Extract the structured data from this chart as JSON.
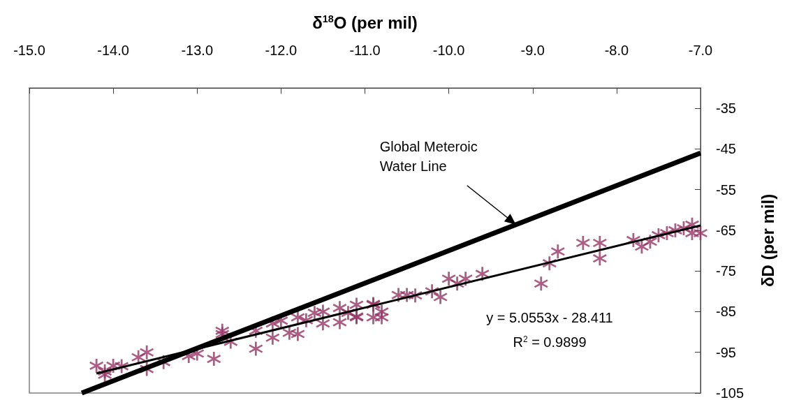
{
  "chart_data": {
    "type": "scatter",
    "xlabel": "δ$^{18}$O (per mil)",
    "ylabel": "δD (per mil)",
    "xlim": [
      -15,
      -7
    ],
    "ylim": [
      -105,
      -30
    ],
    "xticks": [
      {
        "value": -15,
        "label": "-15.0"
      },
      {
        "value": -14,
        "label": "-14.0"
      },
      {
        "value": -13,
        "label": "-13.0"
      },
      {
        "value": -12,
        "label": "-12.0"
      },
      {
        "value": -11,
        "label": "-11.0"
      },
      {
        "value": -10,
        "label": "-10.0"
      },
      {
        "value": -9,
        "label": "-9.0"
      },
      {
        "value": -8,
        "label": "-8.0"
      },
      {
        "value": -7,
        "label": "-7.0"
      }
    ],
    "yticks": [
      -105,
      -95,
      -85,
      -75,
      -65,
      -55,
      -45,
      -35
    ],
    "grid": false,
    "marker": "star",
    "line_style": "solid",
    "series": [
      {
        "type": "line",
        "marker": "none",
        "color": "#000000",
        "x": [
          -14.375,
          -7
        ],
        "values": [
          -105,
          -46
        ]
      },
      {
        "color": "#993366",
        "x": [
          -14.2,
          -14.1,
          -14.0,
          -13.9,
          -14.1,
          -13.7,
          -13.6,
          -13.6,
          -13.4,
          -13.1,
          -13.0,
          -12.8,
          -12.7,
          -12.7,
          -12.6,
          -12.3,
          -12.3,
          -12.1,
          -12.1,
          -12.0,
          -11.9,
          -11.8,
          -11.8,
          -11.7,
          -11.6,
          -11.5,
          -11.5,
          -11.3,
          -11.3,
          -11.2,
          -11.1,
          -11.1,
          -10.9,
          -10.9,
          -11.1,
          -10.9,
          -10.8,
          -10.8,
          -10.6,
          -10.5,
          -10.4,
          -10.2,
          -10.1,
          -10.0,
          -9.9,
          -9.8,
          -9.6,
          -8.9,
          -8.8,
          -8.7,
          -8.4,
          -8.2,
          -8.2,
          -7.8,
          -7.7,
          -7.6,
          -7.5,
          -7.4,
          -7.3,
          -7.2,
          -7.1,
          -7.1,
          -7.0
        ],
        "values": [
          -98.3,
          -100.5,
          -98.3,
          -98.4,
          -99.7,
          -96.2,
          -95,
          -99.1,
          -97.4,
          -95.9,
          -95.3,
          -96.6,
          -89.7,
          -90.5,
          -92.4,
          -94.1,
          -89.7,
          -91.4,
          -87.9,
          -87.2,
          -90.2,
          -86.4,
          -90.5,
          -87.1,
          -85.3,
          -87.9,
          -85,
          -84.1,
          -87.6,
          -85.3,
          -83.3,
          -86.4,
          -83.3,
          -86.4,
          -86.2,
          -83.1,
          -85,
          -86.4,
          -80.9,
          -80.9,
          -81,
          -80,
          -81.4,
          -76.9,
          -78.1,
          -76.9,
          -75.7,
          -78.1,
          -73.1,
          -70.2,
          -68.1,
          -68.1,
          -71.9,
          -67.4,
          -69,
          -67.8,
          -66.2,
          -65.7,
          -65,
          -64.5,
          -63.6,
          -65.7,
          -65.7
        ]
      },
      {
        "type": "line",
        "marker": "none",
        "color": "#000000",
        "x": [
          -14.2,
          -7
        ],
        "values": [
          -100.2,
          -63.8
        ]
      }
    ],
    "annotations": [
      {
        "text": "Global Meteroic\nWater Line",
        "x": -9.2,
        "y": -63.6
      },
      "y = 5.0553x - 28.411",
      "R$^{2}$ = 0.9899"
    ]
  }
}
